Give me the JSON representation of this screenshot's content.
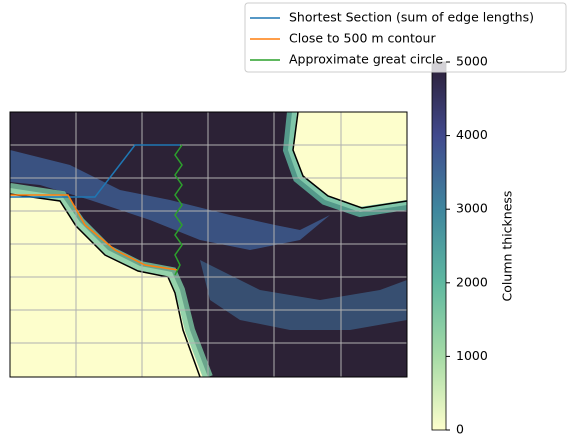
{
  "chart_data": {
    "type": "map",
    "legend": [
      {
        "name": "Shortest Section (sum of edge lengths)",
        "color": "#1f77b4"
      },
      {
        "name": "Close to 500 m contour",
        "color": "#ff7f0e"
      },
      {
        "name": "Approximate great circle",
        "color": "#2ca02c"
      }
    ],
    "colorbar": {
      "label": "Column thickness",
      "lim": [
        0,
        5000
      ],
      "ticks": [
        0,
        1000,
        2000,
        3000,
        4000,
        5000
      ],
      "colors": [
        "#fdfecc",
        "#a6dba6",
        "#5fb8a0",
        "#3f869e",
        "#41498d",
        "#2a1d33"
      ]
    }
  }
}
